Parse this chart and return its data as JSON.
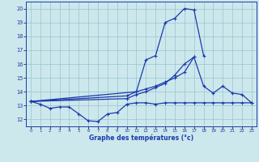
{
  "xlabel": "Graphe des températures (°c)",
  "background_color": "#cce8ed",
  "line_color": "#1c3aaa",
  "grid_color": "#99c4cc",
  "hours": [
    0,
    1,
    2,
    3,
    4,
    5,
    6,
    7,
    8,
    9,
    10,
    11,
    12,
    13,
    14,
    15,
    16,
    17,
    18,
    19,
    20,
    21,
    22,
    23
  ],
  "series_min": [
    13.3,
    13.1,
    12.8,
    12.9,
    12.9,
    12.4,
    11.9,
    11.85,
    12.4,
    12.5,
    13.1,
    13.2,
    13.2,
    13.1,
    13.2,
    13.2,
    13.2,
    13.2,
    13.2,
    13.2,
    13.2,
    13.2,
    13.2,
    13.2
  ],
  "s2_x": [
    0,
    10,
    11,
    12,
    13,
    14,
    15,
    16,
    17
  ],
  "s2_y": [
    13.3,
    13.5,
    13.8,
    14.0,
    14.3,
    14.6,
    15.2,
    16.0,
    16.5
  ],
  "s3_x": [
    0,
    10,
    11,
    12,
    13,
    14,
    15,
    16,
    17,
    18,
    19,
    20,
    21,
    22,
    23
  ],
  "s3_y": [
    13.3,
    13.7,
    14.0,
    14.2,
    14.4,
    14.7,
    15.0,
    15.4,
    16.5,
    14.4,
    13.9,
    14.4,
    13.9,
    13.8,
    13.2
  ],
  "s4_x": [
    0,
    11,
    12,
    13,
    14,
    15,
    16,
    17,
    18
  ],
  "s4_y": [
    13.3,
    14.0,
    16.3,
    16.6,
    19.0,
    19.3,
    20.0,
    19.9,
    16.6
  ],
  "xlim": [
    -0.5,
    23.5
  ],
  "ylim": [
    11.5,
    20.5
  ],
  "yticks": [
    12,
    13,
    14,
    15,
    16,
    17,
    18,
    19,
    20
  ],
  "xticks": [
    0,
    1,
    2,
    3,
    4,
    5,
    6,
    7,
    8,
    9,
    10,
    11,
    12,
    13,
    14,
    15,
    16,
    17,
    18,
    19,
    20,
    21,
    22,
    23
  ]
}
